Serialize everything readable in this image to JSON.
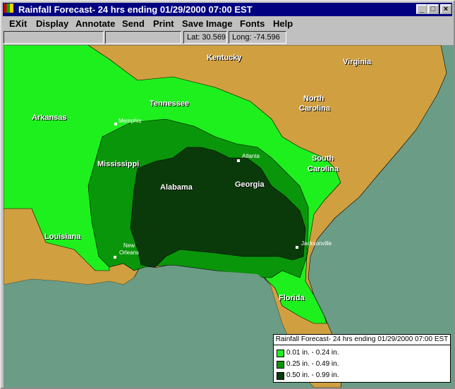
{
  "window": {
    "title": "Rainfall Forecast- 24 hrs ending 01/29/2000 07:00 EST",
    "controls": [
      "minimize",
      "maximize",
      "close"
    ]
  },
  "menu": [
    "EXit",
    "Display",
    "Annotate",
    "Send",
    "Print",
    "Save Image",
    "Fonts",
    "Help"
  ],
  "status": {
    "field1": "",
    "field2": "",
    "lat": "Lat: 30.569",
    "long": "Long: -74.596"
  },
  "colors": {
    "ocean": "#6b9c86",
    "land": "#d0a040",
    "light": "#1ef01e",
    "medium": "#0a960a",
    "dark": "#0a3a0a"
  },
  "map": {
    "states": {
      "kentucky": "Kentucky",
      "virginia": "Virginia",
      "north_carolina_1": "North",
      "north_carolina_2": "Carolina",
      "tennessee": "Tennessee",
      "arkansas": "Arkansas",
      "mississippi": "Mississippi",
      "alabama": "Alabama",
      "georgia": "Georgia",
      "south_carolina_1": "South",
      "south_carolina_2": "Carolina",
      "louisiana": "Louisiana",
      "florida": "Florida"
    },
    "cities": {
      "memphis": "Memphis",
      "atlanta": "Atlanta",
      "new_orleans_1": "New",
      "new_orleans_2": "Orleans",
      "jacksonville": "Jacksonville"
    }
  },
  "legend": {
    "title": "Rainfall Forecast- 24 hrs ending 01/29/2000 07:00 EST",
    "items": [
      {
        "label": "0.01 in. - 0.24 in.",
        "color": "#1ef01e"
      },
      {
        "label": "0.25 in. - 0.49 in.",
        "color": "#0a960a"
      },
      {
        "label": "0.50 in. - 0.99 in.",
        "color": "#0a3a0a"
      }
    ]
  }
}
